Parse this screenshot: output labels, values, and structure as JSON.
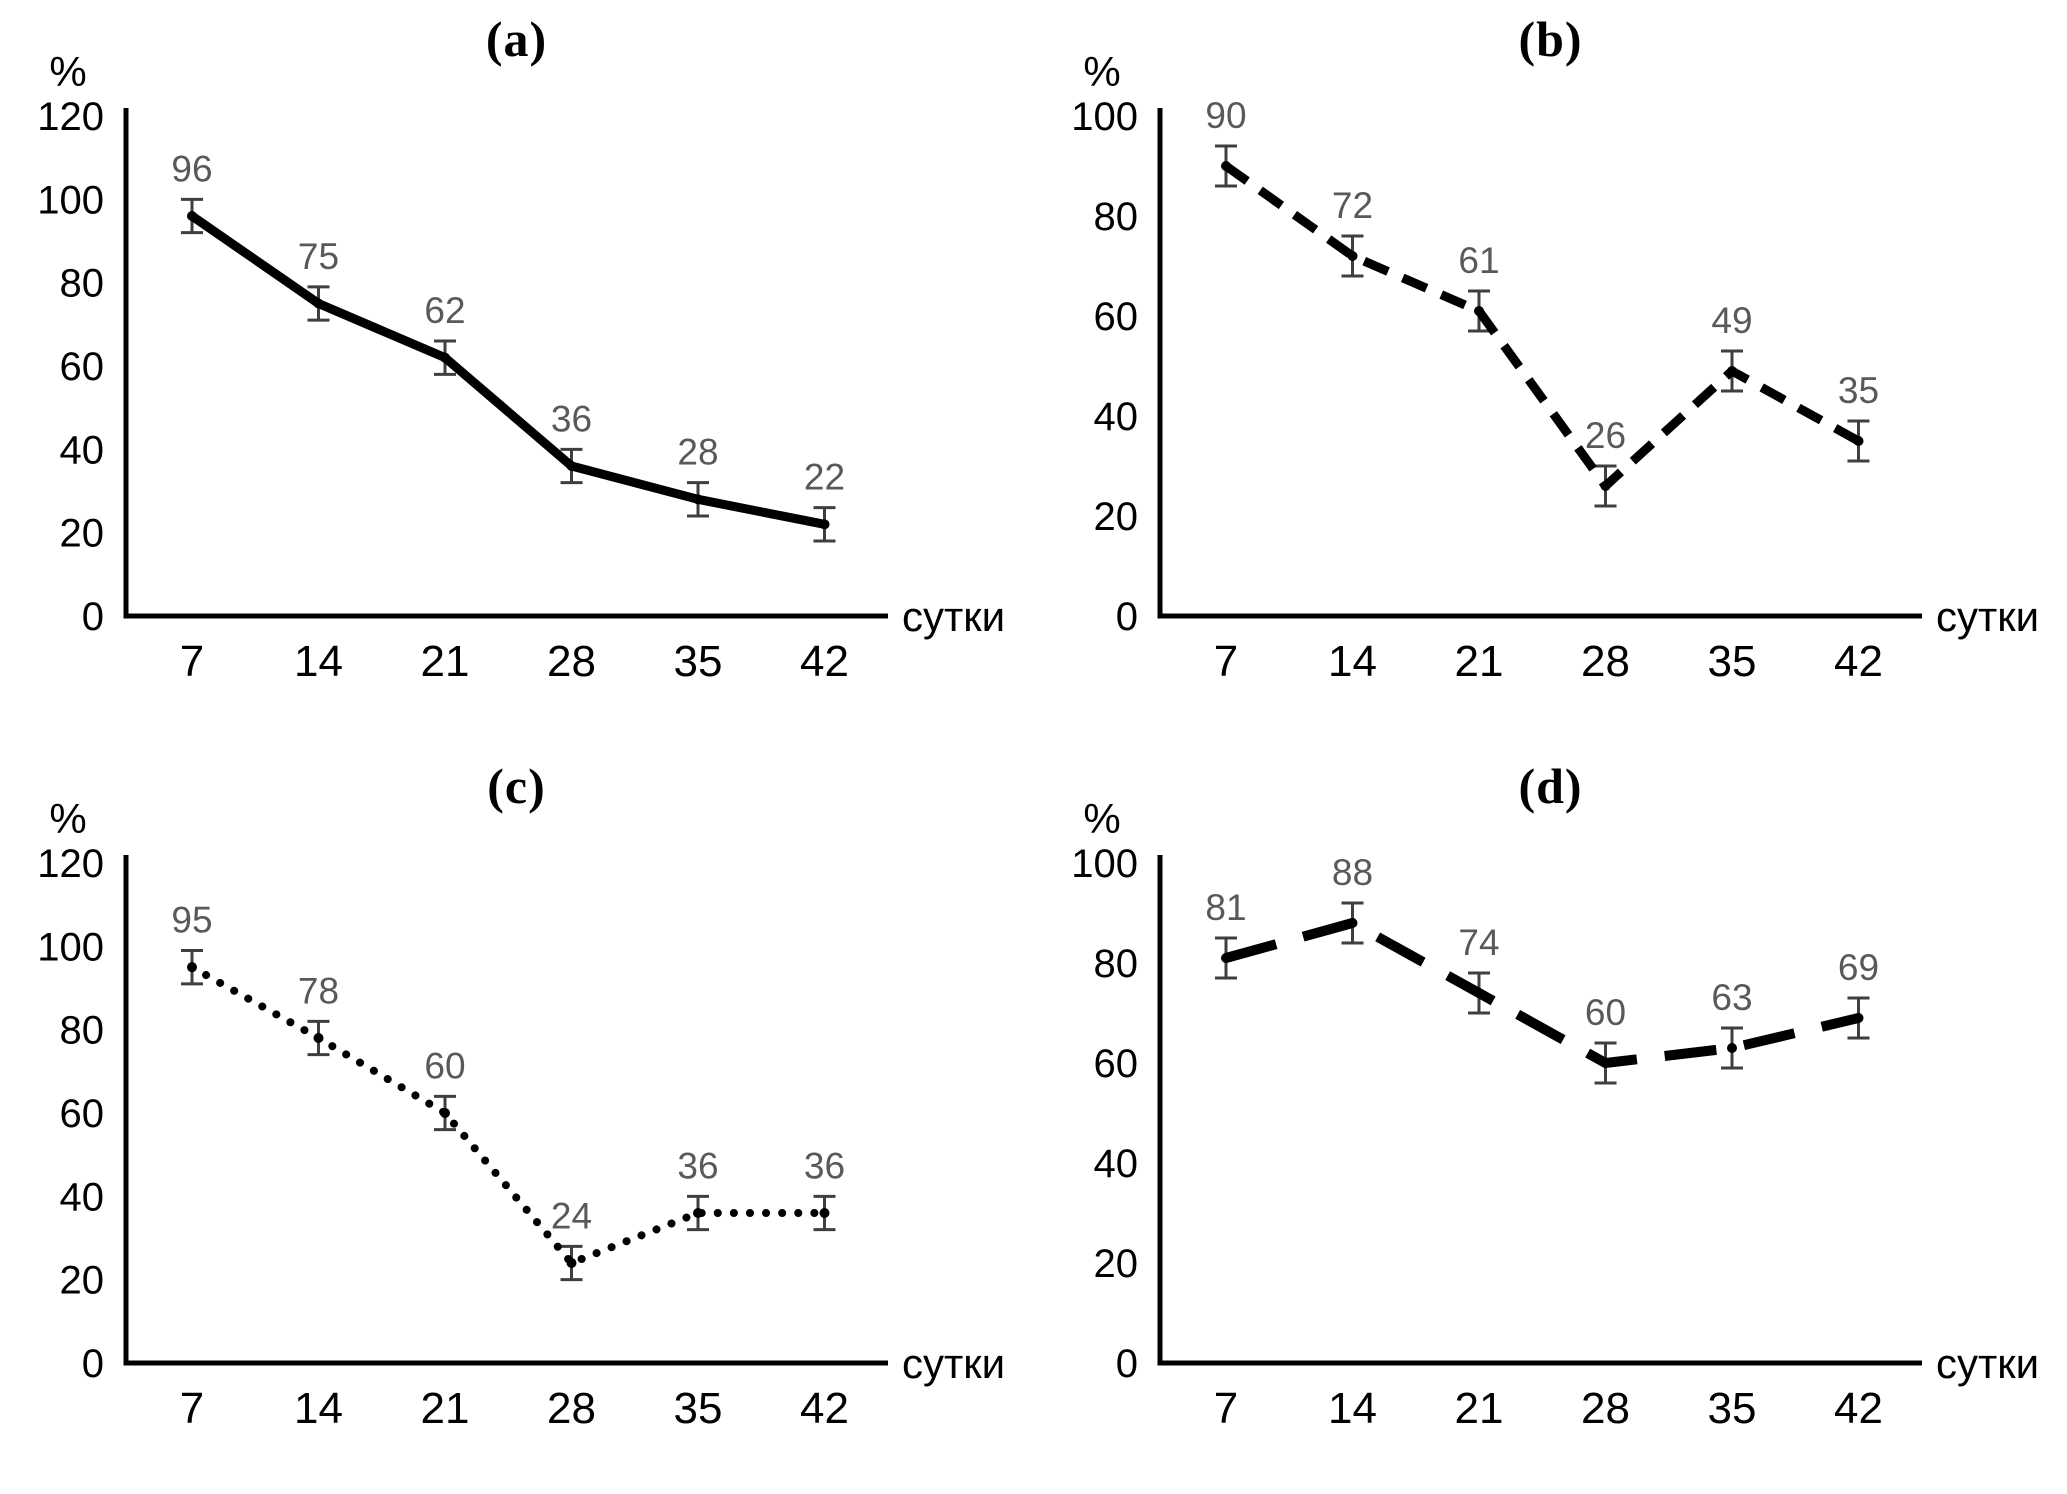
{
  "figure": {
    "background": "#ffffff",
    "axis_color": "#000000",
    "line_color": "#000000",
    "data_label_color": "#595959",
    "error_bar_color": "#3f3f3f",
    "marker_color": "#000000"
  },
  "chart_data": [
    {
      "id": "a",
      "title": "(a)",
      "type": "line",
      "line_style": "solid",
      "ylabel": "%",
      "xlabel": "сутки",
      "x": [
        7,
        14,
        21,
        28,
        35,
        42
      ],
      "values": [
        96,
        75,
        62,
        36,
        28,
        22
      ],
      "error": 4,
      "error_bars": true,
      "data_labels": true,
      "ylim": [
        0,
        120
      ],
      "yticks": [
        0,
        20,
        40,
        60,
        80,
        100,
        120
      ],
      "grid": false,
      "legend": "none"
    },
    {
      "id": "b",
      "title": "(b)",
      "type": "line",
      "line_style": "dashed",
      "ylabel": "%",
      "xlabel": "сутки",
      "x": [
        7,
        14,
        21,
        28,
        35,
        42
      ],
      "values": [
        90,
        72,
        61,
        26,
        49,
        35
      ],
      "error": 4,
      "error_bars": true,
      "data_labels": true,
      "ylim": [
        0,
        100
      ],
      "yticks": [
        0,
        20,
        40,
        60,
        80,
        100
      ],
      "grid": false,
      "legend": "none"
    },
    {
      "id": "c",
      "title": "(c)",
      "type": "line",
      "line_style": "dotted",
      "ylabel": "%",
      "xlabel": "сутки",
      "x": [
        7,
        14,
        21,
        28,
        35,
        42
      ],
      "values": [
        95,
        78,
        60,
        24,
        36,
        36
      ],
      "error": 4,
      "error_bars": true,
      "data_labels": true,
      "ylim": [
        0,
        120
      ],
      "yticks": [
        0,
        20,
        40,
        60,
        80,
        100,
        120
      ],
      "grid": false,
      "legend": "none"
    },
    {
      "id": "d",
      "title": "(d)",
      "type": "line",
      "line_style": "long-dash",
      "ylabel": "%",
      "xlabel": "сутки",
      "x": [
        7,
        14,
        21,
        28,
        35,
        42
      ],
      "values": [
        81,
        88,
        74,
        60,
        63,
        69
      ],
      "error": 4,
      "error_bars": true,
      "data_labels": true,
      "ylim": [
        0,
        100
      ],
      "yticks": [
        0,
        20,
        40,
        60,
        80,
        100
      ],
      "grid": false,
      "legend": "none"
    }
  ]
}
